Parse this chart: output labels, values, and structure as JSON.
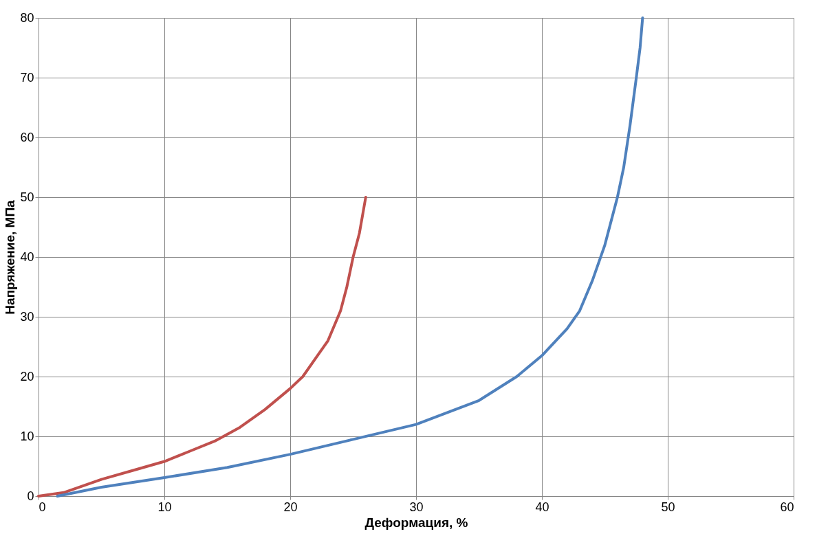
{
  "chart_data": {
    "type": "line",
    "xlabel": "Деформация, %",
    "ylabel": "Напряжение, МПа",
    "xlim": [
      0,
      60
    ],
    "xticks": [
      0,
      10,
      20,
      30,
      40,
      50,
      60
    ],
    "ylim": [
      0,
      80
    ],
    "yticks": [
      0,
      10,
      20,
      30,
      40,
      50,
      60,
      70,
      80
    ],
    "grid": true,
    "marker": "none",
    "line_style": "solid",
    "series": [
      {
        "color": "#c0504d",
        "x": [
          0,
          2,
          5,
          8,
          10,
          12,
          14,
          16,
          18,
          20,
          21,
          22,
          23,
          24,
          24.5,
          25,
          25.5,
          26
        ],
        "values": [
          0,
          0.6,
          2.8,
          4.6,
          5.8,
          7.5,
          9.2,
          11.5,
          14.5,
          18,
          20,
          23,
          26,
          31,
          35,
          40,
          44,
          50
        ]
      },
      {
        "color": "#4f81bd",
        "x": [
          1.5,
          5,
          10,
          15,
          20,
          25,
          30,
          35,
          38,
          40,
          42,
          43,
          44,
          45,
          46,
          46.5,
          47,
          47.5,
          47.8,
          48
        ],
        "values": [
          0,
          1.5,
          3.1,
          4.8,
          7,
          9.5,
          12,
          16,
          20,
          23.5,
          28,
          31,
          36,
          42,
          50,
          55,
          62,
          70,
          75,
          80
        ]
      }
    ]
  }
}
